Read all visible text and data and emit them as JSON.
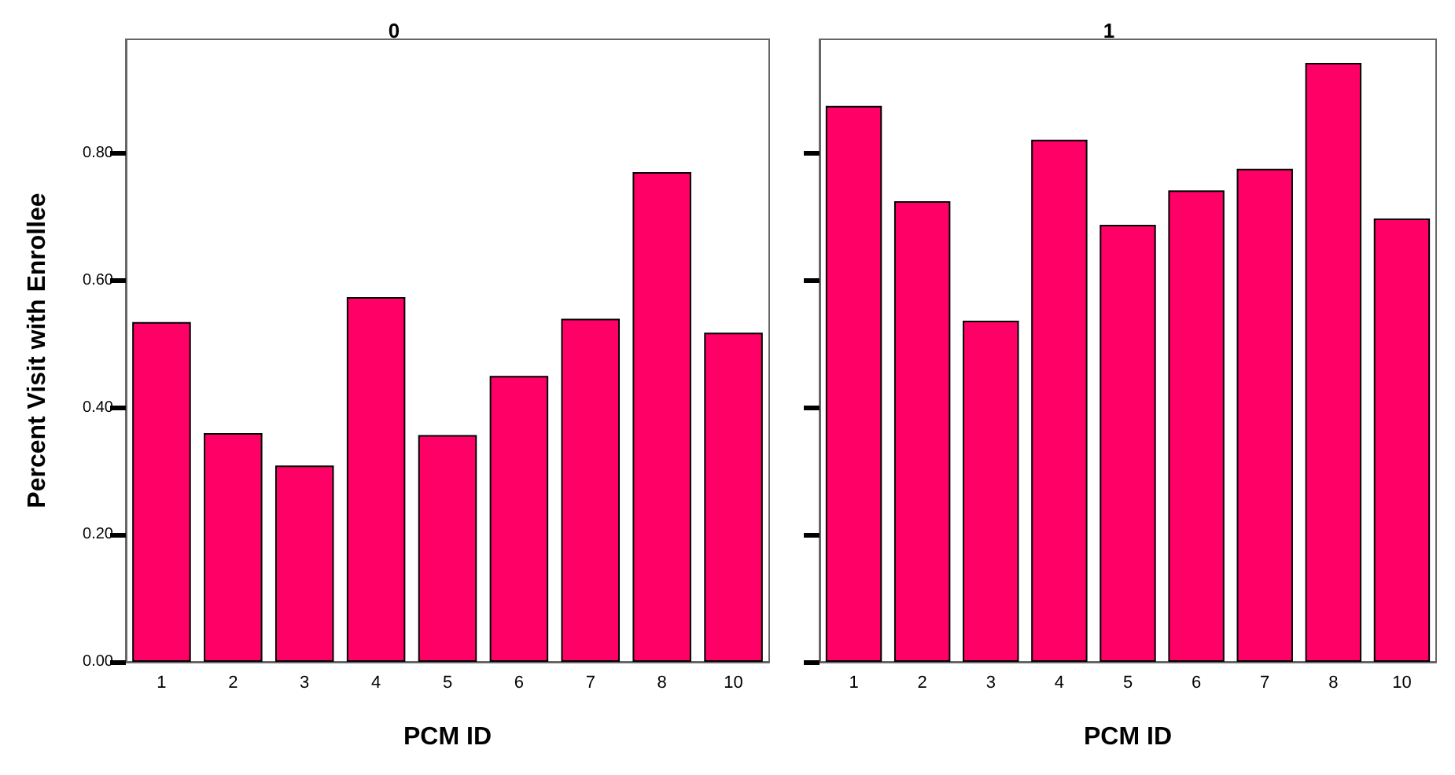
{
  "chart_data": [
    {
      "type": "bar",
      "title": "0",
      "xlabel": "PCM ID",
      "ylabel": "Percent Visit with Enrollee",
      "categories": [
        "1",
        "2",
        "3",
        "4",
        "5",
        "6",
        "7",
        "8",
        "10"
      ],
      "values": [
        0.535,
        0.36,
        0.309,
        0.574,
        0.357,
        0.45,
        0.54,
        0.771,
        0.518
      ],
      "color": "#ff0066",
      "ylim": [
        0,
        0.98
      ],
      "yticks": [
        {
          "value": 0,
          "label": "0.00"
        },
        {
          "value": 0.2,
          "label": "0.20"
        },
        {
          "value": 0.4,
          "label": "0.40"
        },
        {
          "value": 0.6,
          "label": "0.60"
        },
        {
          "value": 0.8,
          "label": "0.80"
        }
      ],
      "grid": false
    },
    {
      "type": "bar",
      "title": "1",
      "xlabel": "PCM ID",
      "categories": [
        "1",
        "2",
        "3",
        "4",
        "5",
        "6",
        "7",
        "8",
        "10"
      ],
      "values": [
        0.875,
        0.725,
        0.537,
        0.822,
        0.688,
        0.742,
        0.776,
        0.943,
        0.698
      ],
      "color": "#ff0066",
      "ylim": [
        0,
        0.98
      ],
      "yticks": [
        {
          "value": 0,
          "label": null
        },
        {
          "value": 0.2,
          "label": null
        },
        {
          "value": 0.4,
          "label": null
        },
        {
          "value": 0.6,
          "label": null
        },
        {
          "value": 0.8,
          "label": null
        }
      ],
      "grid": false,
      "tick_labels": "x"
    }
  ]
}
